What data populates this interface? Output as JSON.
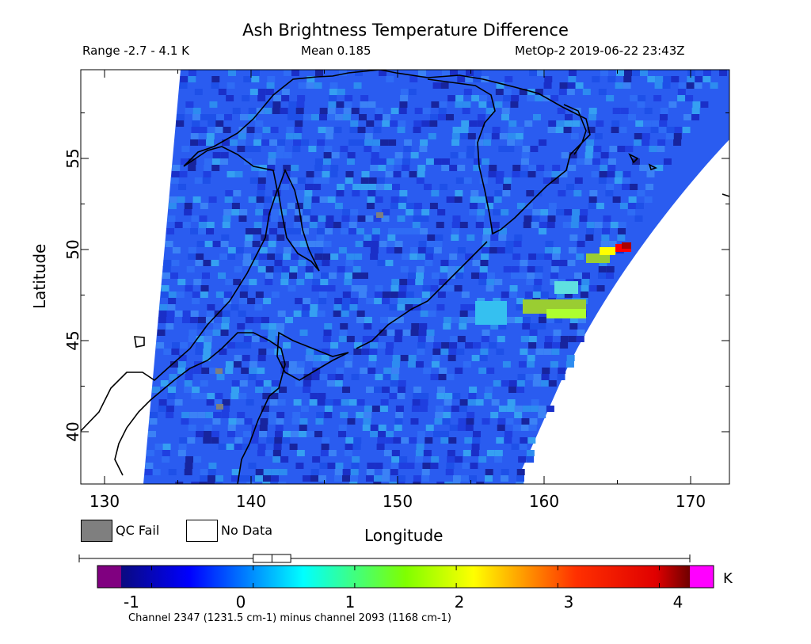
{
  "header": {
    "title": "Ash Brightness Temperature Difference",
    "range": "Range -2.7 - 4.1 K",
    "mean": "Mean 0.185",
    "satellite_time": "MetOp-2 2019-06-22 23:43Z"
  },
  "axes": {
    "xlabel": "Longitude",
    "ylabel": "Latitude",
    "xticks": [
      "130",
      "140",
      "150",
      "160",
      "170"
    ],
    "yticks": [
      "40",
      "45",
      "50",
      "55"
    ],
    "xlim": [
      128.5,
      172.8
    ],
    "ylim": [
      37,
      59.7
    ]
  },
  "legend": {
    "qc_fail": "QC Fail",
    "no_data": "No Data",
    "qc_fail_color": "#7f7f7f",
    "no_data_color": "#ffffff"
  },
  "colorbar": {
    "ticks": [
      "-1",
      "0",
      "1",
      "2",
      "3",
      "4"
    ],
    "tick_values": [
      -1,
      0,
      1,
      2,
      3,
      4
    ],
    "range": [
      -1.3,
      4.3
    ],
    "unit": "K",
    "caption": "Channel 2347 (1231.5 cm-1) minus channel 2093 (1168 cm-1)",
    "below_color": "#800080",
    "above_color": "#ff00ff",
    "box_q1": 0.0,
    "box_median": 0.185,
    "box_q3": 0.37
  },
  "data_colors": {
    "background": "#2a5cf0",
    "hotspot_colors": [
      "#ffff00",
      "#ff0000",
      "#aa0000",
      "#9acd32"
    ]
  }
}
